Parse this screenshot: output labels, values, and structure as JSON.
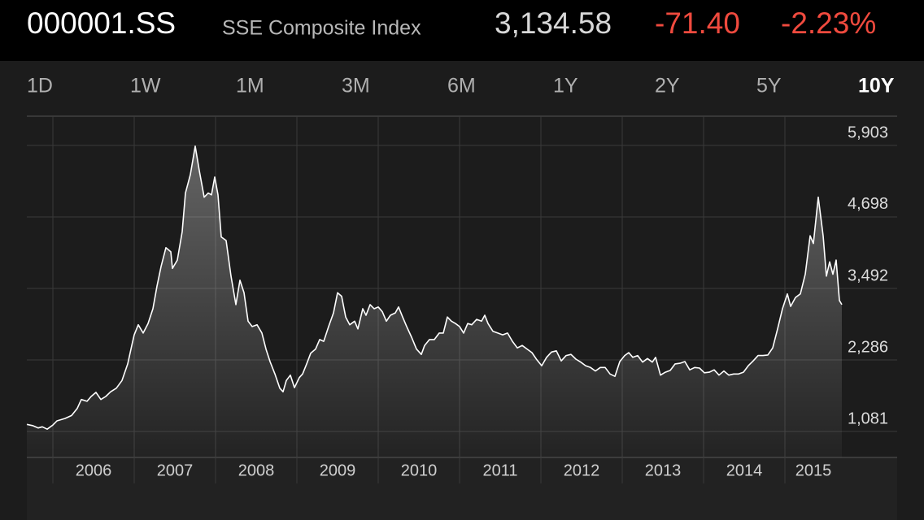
{
  "header": {
    "symbol": "000001.SS",
    "name": "SSE Composite Index",
    "price": "3,134.58",
    "change": "-71.40",
    "change_percent": "-2.23%"
  },
  "ranges": [
    "1D",
    "1W",
    "1M",
    "3M",
    "6M",
    "1Y",
    "2Y",
    "5Y",
    "10Y"
  ],
  "selected_range": "10Y",
  "chart_data": {
    "type": "line",
    "color": "#ffffff",
    "grid": true,
    "x": [
      2005.68,
      2005.75,
      2005.82,
      2005.87,
      2005.93,
      2006.0,
      2006.05,
      2006.15,
      2006.23,
      2006.3,
      2006.35,
      2006.42,
      2006.47,
      2006.53,
      2006.59,
      2006.65,
      2006.71,
      2006.78,
      2006.85,
      2006.92,
      2006.97,
      2007.0,
      2007.05,
      2007.11,
      2007.17,
      2007.23,
      2007.28,
      2007.33,
      2007.39,
      2007.45,
      2007.47,
      2007.53,
      2007.59,
      2007.63,
      2007.69,
      2007.75,
      2007.8,
      2007.86,
      2007.91,
      2007.95,
      2007.99,
      2008.03,
      2008.07,
      2008.13,
      2008.19,
      2008.25,
      2008.3,
      2008.35,
      2008.4,
      2008.45,
      2008.51,
      2008.57,
      2008.62,
      2008.67,
      2008.73,
      2008.79,
      2008.83,
      2008.87,
      2008.92,
      2008.97,
      2009.03,
      2009.07,
      2009.12,
      2009.17,
      2009.23,
      2009.28,
      2009.33,
      2009.39,
      2009.45,
      2009.5,
      2009.55,
      2009.6,
      2009.65,
      2009.71,
      2009.75,
      2009.81,
      2009.85,
      2009.9,
      2009.95,
      2010.0,
      2010.05,
      2010.1,
      2010.15,
      2010.21,
      2010.25,
      2010.3,
      2010.35,
      2010.41,
      2010.47,
      2010.53,
      2010.57,
      2010.63,
      2010.69,
      2010.75,
      2010.8,
      2010.85,
      2010.9,
      2010.95,
      2011.0,
      2011.05,
      2011.1,
      2011.15,
      2011.21,
      2011.27,
      2011.31,
      2011.35,
      2011.41,
      2011.47,
      2011.53,
      2011.59,
      2011.65,
      2011.71,
      2011.77,
      2011.83,
      2011.89,
      2011.95,
      2012.01,
      2012.07,
      2012.13,
      2012.19,
      2012.25,
      2012.31,
      2012.37,
      2012.43,
      2012.49,
      2012.55,
      2012.61,
      2012.67,
      2012.73,
      2012.79,
      2012.85,
      2012.91,
      2012.97,
      2013.03,
      2013.08,
      2013.13,
      2013.19,
      2013.25,
      2013.31,
      2013.37,
      2013.41,
      2013.47,
      2013.53,
      2013.59,
      2013.65,
      2013.71,
      2013.77,
      2013.83,
      2013.89,
      2013.95,
      2014.01,
      2014.07,
      2014.13,
      2014.19,
      2014.25,
      2014.31,
      2014.37,
      2014.43,
      2014.49,
      2014.55,
      2014.61,
      2014.67,
      2014.73,
      2014.79,
      2014.85,
      2014.91,
      2014.97,
      2015.03,
      2015.07,
      2015.13,
      2015.19,
      2015.25,
      2015.31,
      2015.35,
      2015.41,
      2015.47,
      2015.51,
      2015.55,
      2015.59,
      2015.63,
      2015.67,
      2015.7
    ],
    "values": [
      1200,
      1180,
      1140,
      1160,
      1120,
      1190,
      1260,
      1300,
      1350,
      1470,
      1620,
      1590,
      1670,
      1740,
      1620,
      1670,
      1750,
      1810,
      1940,
      2220,
      2530,
      2710,
      2880,
      2740,
      2900,
      3150,
      3530,
      3860,
      4180,
      4110,
      3830,
      3970,
      4450,
      5100,
      5410,
      5890,
      5480,
      5030,
      5100,
      5070,
      5370,
      5070,
      4360,
      4300,
      3700,
      3220,
      3630,
      3420,
      2940,
      2850,
      2880,
      2740,
      2470,
      2260,
      2050,
      1810,
      1750,
      1940,
      2030,
      1820,
      1990,
      2050,
      2220,
      2400,
      2470,
      2630,
      2600,
      2850,
      3080,
      3420,
      3360,
      3010,
      2880,
      2940,
      2810,
      3150,
      3040,
      3220,
      3150,
      3180,
      3100,
      2940,
      3040,
      3080,
      3180,
      3010,
      2850,
      2670,
      2470,
      2380,
      2530,
      2630,
      2630,
      2740,
      2740,
      3010,
      2940,
      2900,
      2850,
      2740,
      2900,
      2880,
      2970,
      2940,
      3040,
      2900,
      2770,
      2740,
      2710,
      2740,
      2600,
      2490,
      2530,
      2470,
      2410,
      2290,
      2190,
      2330,
      2420,
      2440,
      2270,
      2360,
      2380,
      2300,
      2250,
      2190,
      2160,
      2100,
      2160,
      2160,
      2050,
      2010,
      2260,
      2360,
      2410,
      2330,
      2360,
      2250,
      2310,
      2250,
      2330,
      2030,
      2080,
      2110,
      2220,
      2230,
      2260,
      2120,
      2160,
      2150,
      2070,
      2080,
      2120,
      2030,
      2100,
      2030,
      2050,
      2050,
      2080,
      2190,
      2270,
      2360,
      2360,
      2370,
      2490,
      2810,
      3150,
      3400,
      3190,
      3340,
      3400,
      3730,
      4380,
      4250,
      5030,
      4380,
      3700,
      3940,
      3730,
      3970,
      3290,
      3220
    ],
    "xlim": [
      2005.68,
      2015.7
    ],
    "xticks": [
      2006,
      2007,
      2008,
      2009,
      2010,
      2011,
      2012,
      2013,
      2014,
      2015
    ],
    "ylim": [
      643,
      6396
    ],
    "yticks": [
      {
        "value": 1081,
        "label": "1,081"
      },
      {
        "value": 2286,
        "label": "2,286"
      },
      {
        "value": 3492,
        "label": "3,492"
      },
      {
        "value": 4698,
        "label": "4,698"
      },
      {
        "value": 5903,
        "label": "5,903"
      }
    ]
  }
}
